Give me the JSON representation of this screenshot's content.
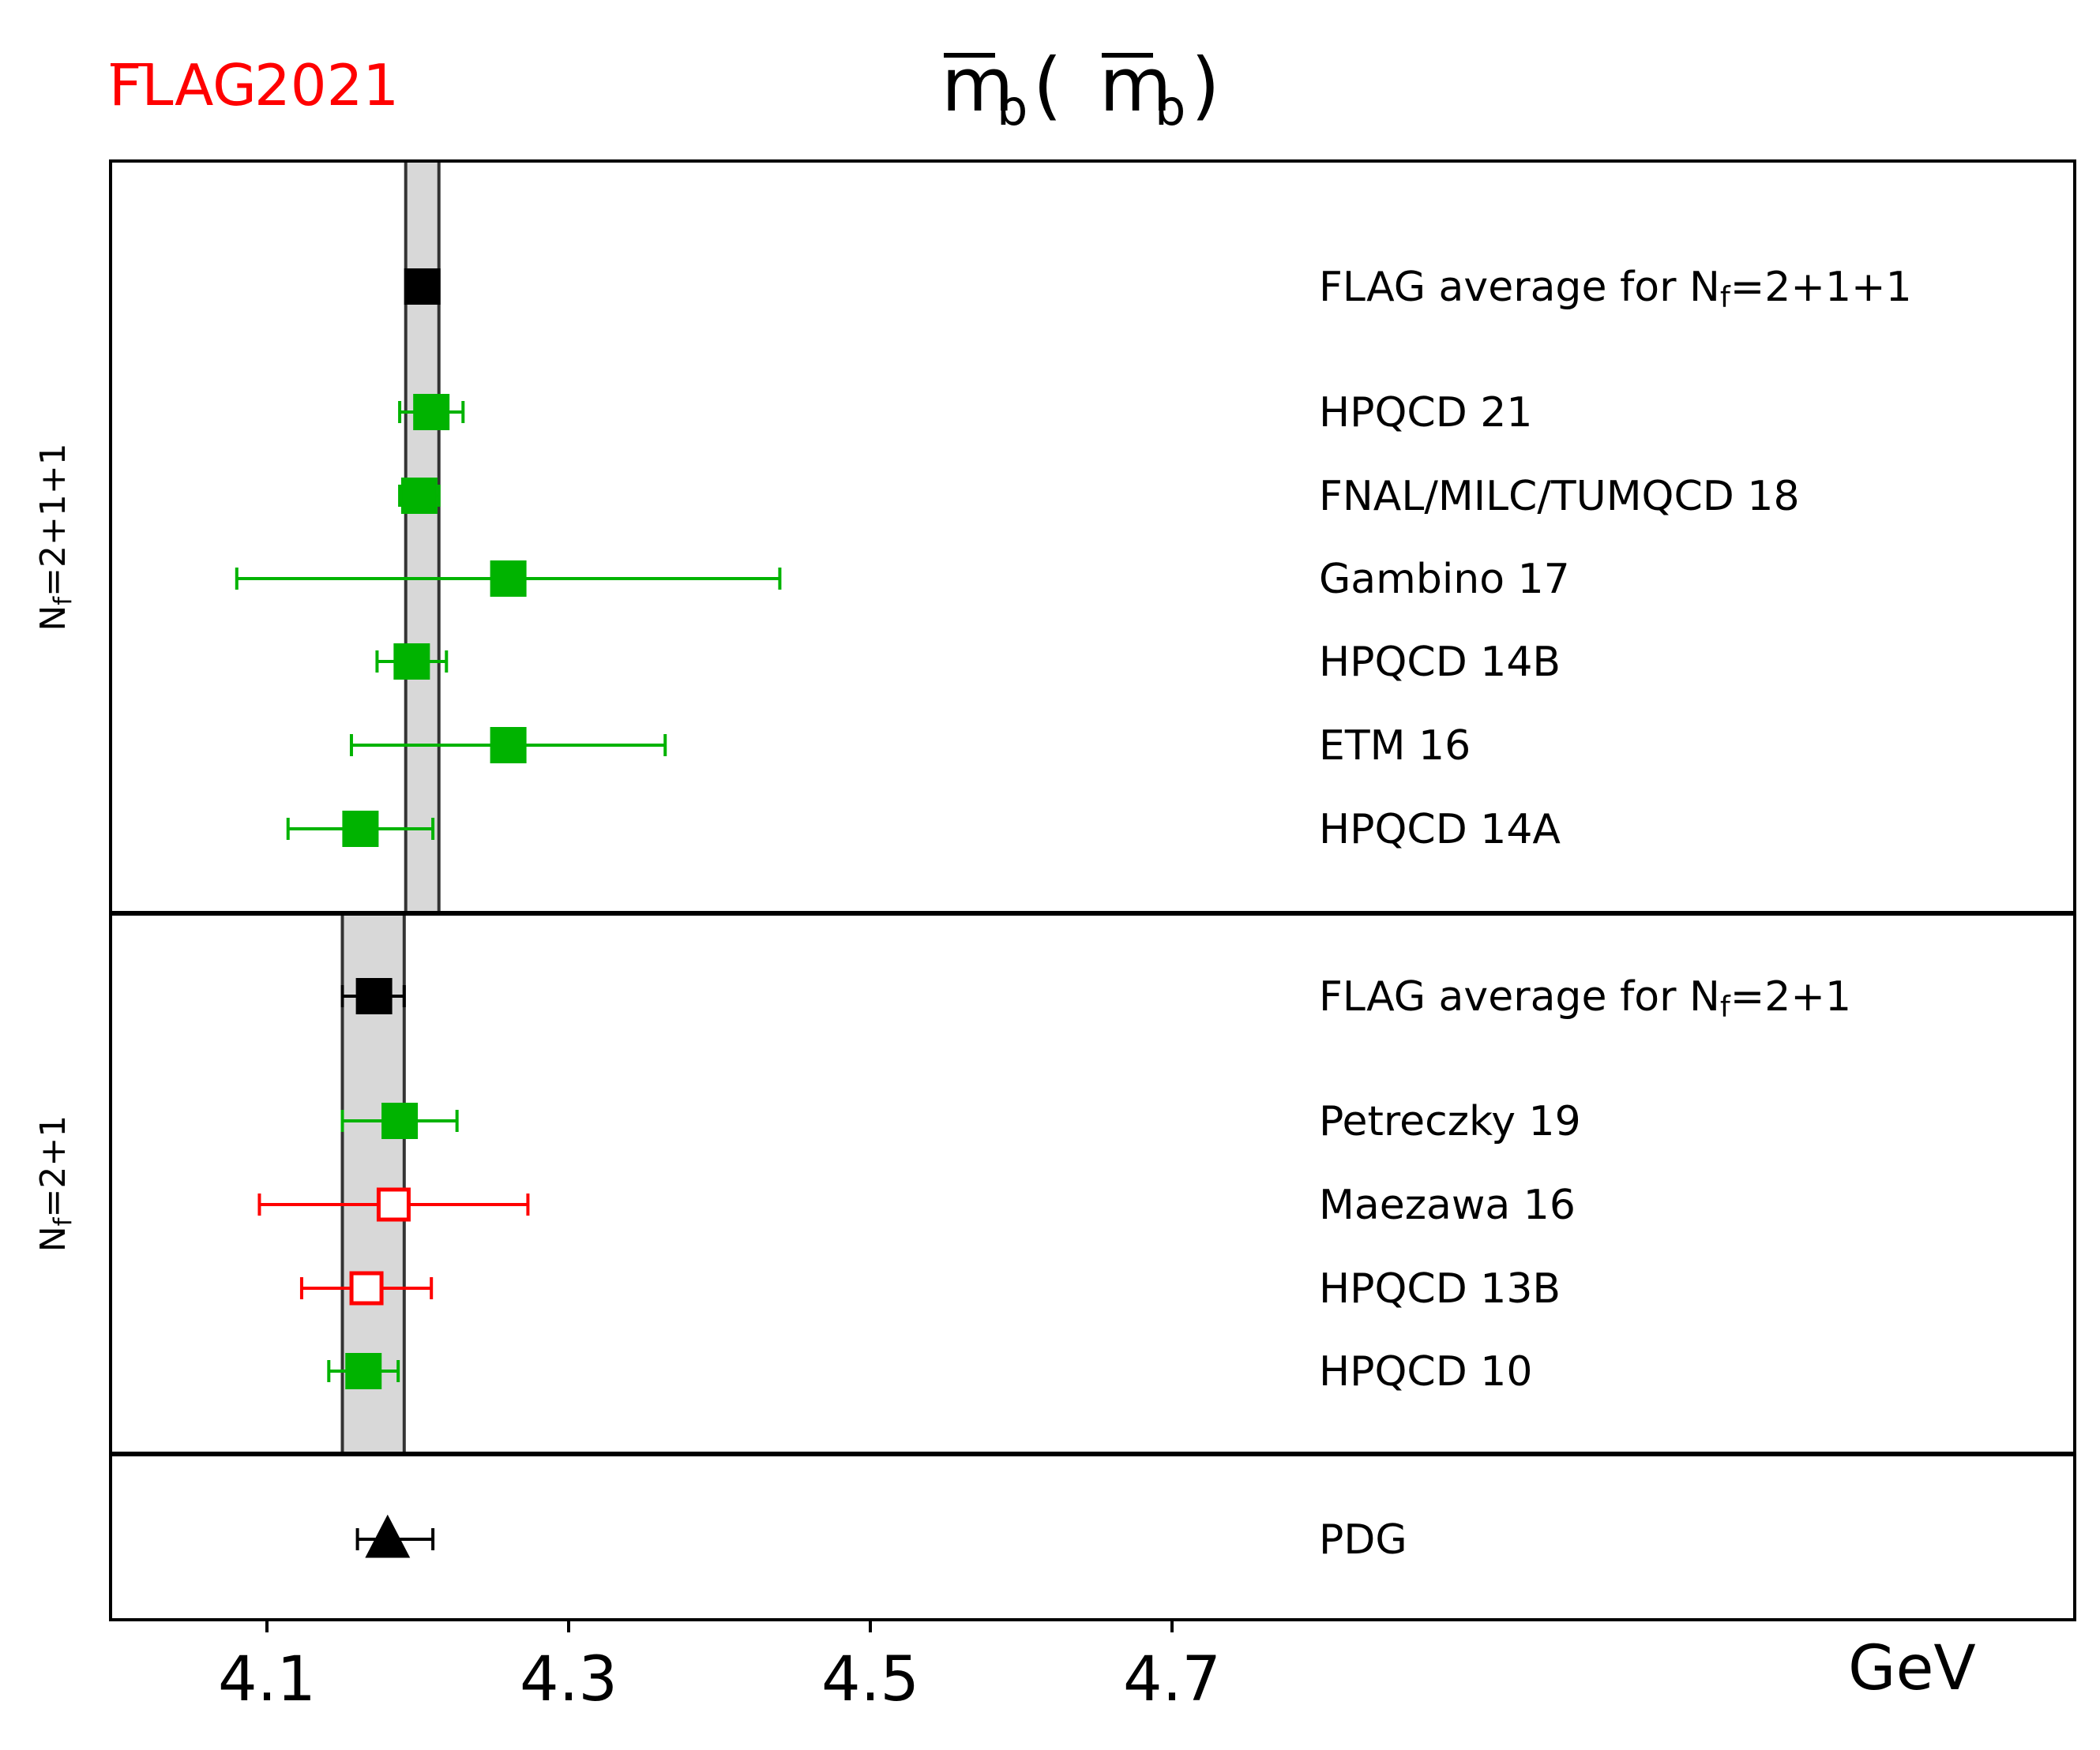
{
  "logo": {
    "text": "FLAG",
    "year": "2021",
    "color": "#ff0000"
  },
  "chart_data": {
    "type": "scatter",
    "orientation": "horizontal",
    "title": {
      "main": "m",
      "sub": "b",
      "text": "m̄b(m̄b)"
    },
    "x_unit": "GeV",
    "xlim": [
      4.0,
      5.3
    ],
    "x_ticks": [
      {
        "value": 4.1,
        "label": "4.1"
      },
      {
        "value": 4.3,
        "label": "4.3"
      },
      {
        "value": 4.5,
        "label": "4.5"
      },
      {
        "value": 4.7,
        "label": "4.7"
      }
    ],
    "panels": [
      {
        "id": "nf4",
        "label": {
          "main": "N",
          "sub": "f",
          "rest": "=2+1+1"
        },
        "band": {
          "lo": 4.192,
          "hi": 4.214
        },
        "points": [
          {
            "name": "FLAG average for ",
            "suffix": {
              "main": "N",
              "sub": "f",
              "rest": "=2+1+1"
            },
            "value": 4.203,
            "lo": 4.203,
            "hi": 4.203,
            "marker": "square",
            "fill": "#000000",
            "stroke": "#000000",
            "err_color": "#000000"
          },
          {
            "name": "HPQCD 21",
            "value": 4.209,
            "lo": 4.188,
            "hi": 4.23,
            "marker": "square",
            "fill": "#00b300",
            "stroke": "#00b300",
            "err_color": "#00b300"
          },
          {
            "name": "FNAL/MILC/TUMQCD 18",
            "value": 4.201,
            "lo": 4.188,
            "hi": 4.214,
            "marker": "square",
            "fill": "#00b300",
            "stroke": "#00b300",
            "err_color": "#00b300"
          },
          {
            "name": "Gambino 17",
            "value": 4.26,
            "lo": 4.08,
            "hi": 4.44,
            "marker": "square",
            "fill": "#00b300",
            "stroke": "#00b300",
            "err_color": "#00b300"
          },
          {
            "name": "HPQCD 14B",
            "value": 4.196,
            "lo": 4.173,
            "hi": 4.219,
            "marker": "square",
            "fill": "#00b300",
            "stroke": "#00b300",
            "err_color": "#00b300"
          },
          {
            "name": "ETM 16",
            "value": 4.26,
            "lo": 4.156,
            "hi": 4.364,
            "marker": "square",
            "fill": "#00b300",
            "stroke": "#00b300",
            "err_color": "#00b300"
          },
          {
            "name": "HPQCD 14A",
            "value": 4.162,
            "lo": 4.114,
            "hi": 4.21,
            "marker": "square",
            "fill": "#00b300",
            "stroke": "#00b300",
            "err_color": "#00b300"
          }
        ]
      },
      {
        "id": "nf3",
        "label": {
          "main": "N",
          "sub": "f",
          "rest": "=2+1"
        },
        "band": {
          "lo": 4.15,
          "hi": 4.191
        },
        "points": [
          {
            "name": "FLAG average for ",
            "suffix": {
              "main": "N",
              "sub": "f",
              "rest": "=2+1"
            },
            "value": 4.171,
            "lo": 4.15,
            "hi": 4.191,
            "marker": "square",
            "fill": "#000000",
            "stroke": "#000000",
            "err_color": "#000000"
          },
          {
            "name": "Petreczky 19",
            "value": 4.188,
            "lo": 4.15,
            "hi": 4.226,
            "marker": "square",
            "fill": "#00b300",
            "stroke": "#00b300",
            "err_color": "#00b300"
          },
          {
            "name": "Maezawa 16",
            "value": 4.184,
            "lo": 4.095,
            "hi": 4.273,
            "marker": "square",
            "fill": "#ffffff",
            "stroke": "#ff0000",
            "err_color": "#ff0000"
          },
          {
            "name": "HPQCD 13B",
            "value": 4.166,
            "lo": 4.123,
            "hi": 4.209,
            "marker": "square",
            "fill": "#ffffff",
            "stroke": "#ff0000",
            "err_color": "#ff0000"
          },
          {
            "name": "HPQCD 10",
            "value": 4.164,
            "lo": 4.141,
            "hi": 4.187,
            "marker": "square",
            "fill": "#00b300",
            "stroke": "#00b300",
            "err_color": "#00b300"
          }
        ]
      },
      {
        "id": "pdg",
        "label": null,
        "band": null,
        "points": [
          {
            "name": "PDG",
            "value": 4.18,
            "lo": 4.16,
            "hi": 4.21,
            "marker": "triangle",
            "fill": "#000000",
            "stroke": "#000000",
            "err_color": "#000000"
          }
        ]
      }
    ]
  }
}
